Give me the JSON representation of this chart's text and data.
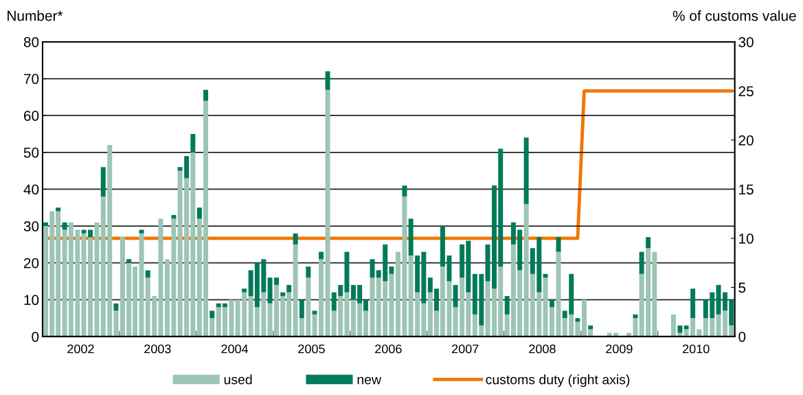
{
  "chart_data": {
    "type": "bar",
    "stacked": true,
    "ylabel": "Number*",
    "y2label": "% of customs value",
    "x": [
      "2002-01-16",
      "2002-02-15",
      "2002-03-16",
      "2002-04-16",
      "2002-05-16",
      "2002-06-16",
      "2002-07-16",
      "2002-08-16",
      "2002-09-16",
      "2002-10-16",
      "2002-11-16",
      "2002-12-16",
      "2003-01-16",
      "2003-02-15",
      "2003-03-16",
      "2003-04-16",
      "2003-05-16",
      "2003-06-16",
      "2003-07-16",
      "2003-08-16",
      "2003-09-16",
      "2003-10-16",
      "2003-11-16",
      "2003-12-16",
      "2004-01-16",
      "2004-02-15",
      "2004-03-16",
      "2004-04-16",
      "2004-05-16",
      "2004-06-16",
      "2004-07-16",
      "2004-08-16",
      "2004-09-16",
      "2004-10-16",
      "2004-11-16",
      "2004-12-16",
      "2005-01-16",
      "2005-02-15",
      "2005-03-16",
      "2005-04-16",
      "2005-05-16",
      "2005-06-16",
      "2005-07-16",
      "2005-08-16",
      "2005-09-16",
      "2005-10-16",
      "2005-11-16",
      "2005-12-16",
      "2006-01-16",
      "2006-02-15",
      "2006-03-16",
      "2006-04-16",
      "2006-05-16",
      "2006-06-16",
      "2006-07-16",
      "2006-08-16",
      "2006-09-16",
      "2006-10-16",
      "2006-11-16",
      "2006-12-16",
      "2007-01-16",
      "2007-02-15",
      "2007-03-16",
      "2007-04-16",
      "2007-05-16",
      "2007-06-16",
      "2007-07-16",
      "2007-08-16",
      "2007-09-16",
      "2007-10-16",
      "2007-11-16",
      "2007-12-16",
      "2008-01-16",
      "2008-02-15",
      "2008-03-16",
      "2008-04-16",
      "2008-05-16",
      "2008-06-16",
      "2008-07-16",
      "2008-08-16",
      "2008-09-16",
      "2008-10-16",
      "2008-11-16",
      "2008-12-16",
      "2009-01-16",
      "2009-02-15",
      "2009-03-16",
      "2009-04-16",
      "2009-05-16",
      "2009-06-16",
      "2009-07-16",
      "2009-08-16",
      "2009-09-16",
      "2009-10-16",
      "2009-11-16",
      "2009-12-16",
      "2010-01-16",
      "2010-02-15",
      "2010-03-16",
      "2010-04-16",
      "2010-05-16",
      "2010-06-16",
      "2010-07-16",
      "2010-08-16",
      "2010-09-16",
      "2010-10-16",
      "2010-11-16",
      "2010-12-16"
    ],
    "series": [
      {
        "name": "used",
        "color": "#9dc5b5",
        "values": [
          30,
          34,
          34,
          29,
          31,
          29,
          28,
          27,
          31,
          38,
          52,
          7,
          27,
          20,
          19,
          28,
          16,
          11,
          32,
          21,
          32,
          45,
          43,
          50,
          32,
          64,
          5,
          8,
          8,
          10,
          10,
          12,
          11,
          8,
          12,
          9,
          14,
          11,
          12,
          25,
          5,
          16,
          6,
          21,
          67,
          7,
          11,
          12,
          10,
          9,
          7,
          16,
          16,
          15,
          17,
          23,
          38,
          22,
          12,
          9,
          12,
          7,
          19,
          15,
          8,
          16,
          12,
          6,
          3,
          15,
          13,
          19,
          6,
          25,
          18,
          36,
          17,
          12,
          16,
          8,
          23,
          5,
          6,
          4,
          10,
          2,
          0,
          0,
          1,
          1,
          0,
          1,
          5,
          17,
          24,
          23,
          0,
          0,
          6,
          1,
          2,
          5,
          2,
          5,
          5,
          6,
          7,
          3
        ]
      },
      {
        "name": "new",
        "color": "#007a5a",
        "values": [
          1,
          0,
          1,
          2,
          0,
          0,
          1,
          2,
          0,
          8,
          0,
          2,
          0,
          1,
          0,
          1,
          2,
          0,
          0,
          0,
          1,
          1,
          6,
          5,
          3,
          3,
          2,
          1,
          1,
          0,
          0,
          1,
          7,
          12,
          9,
          7,
          2,
          1,
          2,
          3,
          5,
          3,
          1,
          2,
          5,
          5,
          3,
          11,
          4,
          5,
          3,
          5,
          2,
          10,
          2,
          0,
          3,
          10,
          10,
          14,
          4,
          6,
          11,
          7,
          6,
          9,
          14,
          11,
          14,
          10,
          28,
          32,
          5,
          6,
          11,
          18,
          7,
          15,
          1,
          2,
          4,
          2,
          11,
          1,
          0,
          1,
          0,
          0,
          0,
          0,
          0,
          0,
          1,
          6,
          3,
          0,
          0,
          0,
          0,
          2,
          1,
          8,
          0,
          5,
          7,
          8,
          5,
          7
        ]
      },
      {
        "name": "customs duty (right axis)",
        "type": "line",
        "axis": "y2",
        "color": "#f07800",
        "values": [
          10,
          10,
          10,
          10,
          10,
          10,
          10,
          10,
          10,
          10,
          10,
          10,
          10,
          10,
          10,
          10,
          10,
          10,
          10,
          10,
          10,
          10,
          10,
          10,
          10,
          10,
          10,
          10,
          10,
          10,
          10,
          10,
          10,
          10,
          10,
          10,
          10,
          10,
          10,
          10,
          10,
          10,
          10,
          10,
          10,
          10,
          10,
          10,
          10,
          10,
          10,
          10,
          10,
          10,
          10,
          10,
          10,
          10,
          10,
          10,
          10,
          10,
          10,
          10,
          10,
          10,
          10,
          10,
          10,
          10,
          10,
          10,
          10,
          10,
          10,
          10,
          10,
          10,
          10,
          10,
          10,
          10,
          10,
          10,
          25,
          25,
          25,
          25,
          25,
          25,
          25,
          25,
          25,
          25,
          25,
          25,
          25,
          25,
          25,
          25,
          25,
          25,
          25,
          25,
          25,
          25,
          25,
          25
        ]
      }
    ],
    "xlim": [
      "2002-01-01",
      "2011-01-01"
    ],
    "xticks": [
      {
        "value": "2002-01",
        "label": null
      },
      {
        "value": "2002-07",
        "label": "2002"
      },
      {
        "value": "2003-01",
        "label": null
      },
      {
        "value": "2003-07",
        "label": "2003"
      },
      {
        "value": "2004-01",
        "label": null
      },
      {
        "value": "2004-07",
        "label": "2004"
      },
      {
        "value": "2005-01",
        "label": null
      },
      {
        "value": "2005-07",
        "label": "2005"
      },
      {
        "value": "2006-01",
        "label": null
      },
      {
        "value": "2006-07",
        "label": "2006"
      },
      {
        "value": "2007-01",
        "label": null
      },
      {
        "value": "2007-07",
        "label": "2007"
      },
      {
        "value": "2008-01",
        "label": null
      },
      {
        "value": "2008-07",
        "label": "2008"
      },
      {
        "value": "2009-01",
        "label": null
      },
      {
        "value": "2009-07",
        "label": "2009"
      },
      {
        "value": "2010-01",
        "label": null
      },
      {
        "value": "2010-07",
        "label": "2010"
      },
      {
        "value": "2011-01",
        "label": null
      }
    ],
    "ylim": [
      0,
      80
    ],
    "yticks": [
      0,
      10,
      20,
      30,
      40,
      50,
      60,
      70,
      80
    ],
    "y2lim": [
      0,
      30
    ],
    "y2ticks": [
      0,
      5,
      10,
      15,
      20,
      25,
      30
    ],
    "grid": "y",
    "legend": "bottom"
  }
}
